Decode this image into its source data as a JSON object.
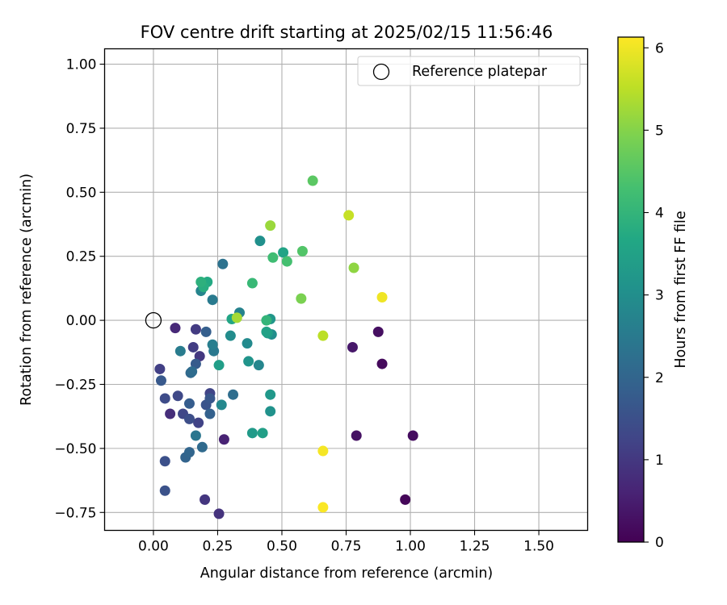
{
  "chart_data": {
    "type": "scatter",
    "title": "FOV centre drift starting at 2025/02/15 11:56:46",
    "xlabel": "Angular distance from reference (arcmin)",
    "ylabel": "Rotation from reference (arcmin)",
    "xlim": [
      -0.19,
      1.69
    ],
    "ylim": [
      -0.82,
      1.06
    ],
    "xticks": [
      0.0,
      0.25,
      0.5,
      0.75,
      1.0,
      1.25,
      1.5
    ],
    "xtick_labels": [
      "0.00",
      "0.25",
      "0.50",
      "0.75",
      "1.00",
      "1.25",
      "1.50"
    ],
    "yticks": [
      -0.75,
      -0.5,
      -0.25,
      0.0,
      0.25,
      0.5,
      0.75,
      1.0
    ],
    "ytick_labels": [
      "−0.75",
      "−0.50",
      "−0.25",
      "0.00",
      "0.25",
      "0.50",
      "0.75",
      "1.00"
    ],
    "grid": true,
    "legend": {
      "position": "top-right",
      "entries": [
        "Reference platepar"
      ]
    },
    "colorbar": {
      "label": "Hours from first FF file",
      "range": [
        0,
        6.13
      ],
      "ticks": [
        0,
        1,
        2,
        3,
        4,
        5,
        6
      ],
      "tick_labels": [
        "0",
        "1",
        "2",
        "3",
        "4",
        "5",
        "6"
      ],
      "colormap": "viridis"
    },
    "reference": {
      "x": 0.0,
      "y": 0.0,
      "label": "Reference platepar"
    },
    "points": [
      {
        "x": 0.98,
        "y": -0.7,
        "c": 0.1
      },
      {
        "x": 0.89,
        "y": -0.17,
        "c": 0.15
      },
      {
        "x": 1.01,
        "y": -0.45,
        "c": 0.2
      },
      {
        "x": 0.875,
        "y": -0.045,
        "c": 0.25
      },
      {
        "x": 0.79,
        "y": -0.45,
        "c": 0.3
      },
      {
        "x": 0.775,
        "y": -0.105,
        "c": 0.4
      },
      {
        "x": 0.275,
        "y": -0.465,
        "c": 0.6
      },
      {
        "x": 0.085,
        "y": -0.03,
        "c": 0.7
      },
      {
        "x": 0.065,
        "y": -0.365,
        "c": 0.8
      },
      {
        "x": 0.255,
        "y": -0.755,
        "c": 0.9
      },
      {
        "x": 0.2,
        "y": -0.7,
        "c": 0.95
      },
      {
        "x": 0.18,
        "y": -0.14,
        "c": 1.0
      },
      {
        "x": 0.165,
        "y": -0.035,
        "c": 1.05
      },
      {
        "x": 0.155,
        "y": -0.105,
        "c": 1.1
      },
      {
        "x": 0.025,
        "y": -0.19,
        "c": 1.15
      },
      {
        "x": 0.175,
        "y": -0.4,
        "c": 1.2
      },
      {
        "x": 0.22,
        "y": -0.285,
        "c": 1.25
      },
      {
        "x": 0.115,
        "y": -0.365,
        "c": 1.3
      },
      {
        "x": 0.095,
        "y": -0.295,
        "c": 1.35
      },
      {
        "x": 0.045,
        "y": -0.305,
        "c": 1.4
      },
      {
        "x": 0.14,
        "y": -0.385,
        "c": 1.45
      },
      {
        "x": 0.045,
        "y": -0.55,
        "c": 1.5
      },
      {
        "x": 0.045,
        "y": -0.665,
        "c": 1.55
      },
      {
        "x": 0.205,
        "y": -0.33,
        "c": 1.6
      },
      {
        "x": 0.22,
        "y": -0.305,
        "c": 1.65
      },
      {
        "x": 0.03,
        "y": -0.235,
        "c": 1.7
      },
      {
        "x": 0.165,
        "y": -0.17,
        "c": 1.75
      },
      {
        "x": 0.14,
        "y": -0.325,
        "c": 1.8
      },
      {
        "x": 0.205,
        "y": -0.045,
        "c": 1.85
      },
      {
        "x": 0.22,
        "y": -0.365,
        "c": 1.9
      },
      {
        "x": 0.125,
        "y": -0.535,
        "c": 1.95
      },
      {
        "x": 0.14,
        "y": -0.515,
        "c": 2.0
      },
      {
        "x": 0.145,
        "y": -0.205,
        "c": 2.05
      },
      {
        "x": 0.19,
        "y": -0.495,
        "c": 2.1
      },
      {
        "x": 0.15,
        "y": -0.2,
        "c": 2.15
      },
      {
        "x": 0.31,
        "y": -0.29,
        "c": 2.2
      },
      {
        "x": 0.27,
        "y": 0.22,
        "c": 2.3
      },
      {
        "x": 0.165,
        "y": -0.45,
        "c": 2.4
      },
      {
        "x": 0.235,
        "y": -0.12,
        "c": 2.45
      },
      {
        "x": 0.23,
        "y": 0.08,
        "c": 2.5
      },
      {
        "x": 0.105,
        "y": -0.12,
        "c": 2.55
      },
      {
        "x": 0.23,
        "y": -0.095,
        "c": 2.6
      },
      {
        "x": 0.335,
        "y": 0.03,
        "c": 2.7
      },
      {
        "x": 0.185,
        "y": 0.115,
        "c": 2.75
      },
      {
        "x": 0.41,
        "y": -0.175,
        "c": 2.8
      },
      {
        "x": 0.265,
        "y": -0.33,
        "c": 2.85
      },
      {
        "x": 0.365,
        "y": -0.09,
        "c": 2.9
      },
      {
        "x": 0.3,
        "y": -0.06,
        "c": 2.95
      },
      {
        "x": 0.46,
        "y": -0.055,
        "c": 3.0
      },
      {
        "x": 0.415,
        "y": 0.31,
        "c": 3.05
      },
      {
        "x": 0.455,
        "y": -0.355,
        "c": 3.1
      },
      {
        "x": 0.37,
        "y": -0.16,
        "c": 3.15
      },
      {
        "x": 0.455,
        "y": 0.005,
        "c": 3.2
      },
      {
        "x": 0.455,
        "y": -0.29,
        "c": 3.25
      },
      {
        "x": 0.385,
        "y": -0.44,
        "c": 3.3
      },
      {
        "x": 0.445,
        "y": -0.05,
        "c": 3.35
      },
      {
        "x": 0.255,
        "y": -0.175,
        "c": 3.4
      },
      {
        "x": 0.425,
        "y": -0.44,
        "c": 3.45
      },
      {
        "x": 0.44,
        "y": -0.045,
        "c": 3.5
      },
      {
        "x": 0.505,
        "y": 0.265,
        "c": 3.55
      },
      {
        "x": 0.305,
        "y": 0.005,
        "c": 3.6
      },
      {
        "x": 0.21,
        "y": 0.15,
        "c": 3.7
      },
      {
        "x": 0.195,
        "y": 0.13,
        "c": 3.8
      },
      {
        "x": 0.185,
        "y": 0.15,
        "c": 3.9
      },
      {
        "x": 0.44,
        "y": 0.0,
        "c": 4.0
      },
      {
        "x": 0.385,
        "y": 0.145,
        "c": 4.1
      },
      {
        "x": 0.465,
        "y": 0.245,
        "c": 4.2
      },
      {
        "x": 0.52,
        "y": 0.23,
        "c": 4.3
      },
      {
        "x": 0.58,
        "y": 0.27,
        "c": 4.45
      },
      {
        "x": 0.62,
        "y": 0.545,
        "c": 4.55
      },
      {
        "x": 0.575,
        "y": 0.085,
        "c": 4.9
      },
      {
        "x": 0.78,
        "y": 0.205,
        "c": 5.1
      },
      {
        "x": 0.455,
        "y": 0.37,
        "c": 5.2
      },
      {
        "x": 0.325,
        "y": 0.01,
        "c": 5.3
      },
      {
        "x": 0.66,
        "y": -0.06,
        "c": 5.5
      },
      {
        "x": 0.76,
        "y": 0.41,
        "c": 5.6
      },
      {
        "x": 0.89,
        "y": 0.09,
        "c": 6.0
      },
      {
        "x": 0.66,
        "y": -0.51,
        "c": 6.05
      },
      {
        "x": 0.66,
        "y": -0.73,
        "c": 6.1
      }
    ]
  }
}
